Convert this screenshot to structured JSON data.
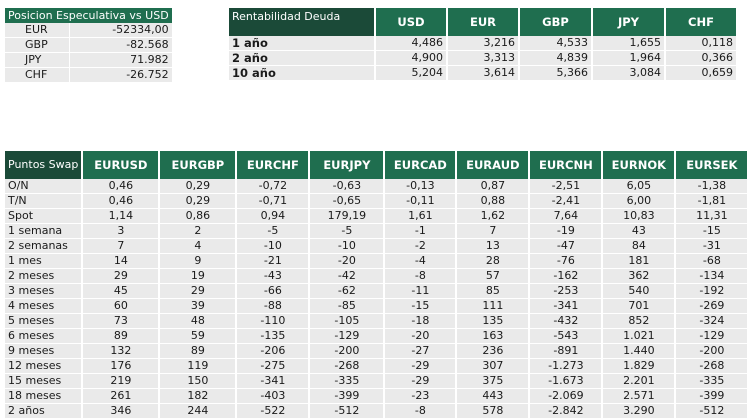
{
  "posicion": {
    "title": "Posicion Especulativa vs USD",
    "rows": [
      {
        "label": "EUR",
        "value": "-52334,00"
      },
      {
        "label": "GBP",
        "value": "-82.568"
      },
      {
        "label": "JPY",
        "value": "71.982"
      },
      {
        "label": "CHF",
        "value": "-26.752"
      }
    ]
  },
  "rentabilidad": {
    "title": "Rentabilidad Deuda",
    "columns": [
      "USD",
      "EUR",
      "GBP",
      "JPY",
      "CHF"
    ],
    "rows": [
      {
        "label": "1 año",
        "values": [
          "4,486",
          "3,216",
          "4,533",
          "1,655",
          "0,118"
        ]
      },
      {
        "label": "2 año",
        "values": [
          "4,900",
          "3,313",
          "4,839",
          "1,964",
          "0,366"
        ]
      },
      {
        "label": "10 año",
        "values": [
          "5,204",
          "3,614",
          "5,366",
          "3,084",
          "0,659"
        ]
      }
    ]
  },
  "swap": {
    "title": "Puntos Swap",
    "columns": [
      "EURUSD",
      "EURGBP",
      "EURCHF",
      "EURJPY",
      "EURCAD",
      "EURAUD",
      "EURCNH",
      "EURNOK",
      "EURSEK"
    ],
    "rows": [
      {
        "label": "O/N",
        "values": [
          "0,46",
          "0,29",
          "-0,72",
          "-0,63",
          "-0,13",
          "0,87",
          "-2,51",
          "6,05",
          "-1,38"
        ]
      },
      {
        "label": "T/N",
        "values": [
          "0,46",
          "0,29",
          "-0,71",
          "-0,65",
          "-0,11",
          "0,88",
          "-2,41",
          "6,00",
          "-1,81"
        ]
      },
      {
        "label": "Spot",
        "values": [
          "1,14",
          "0,86",
          "0,94",
          "179,19",
          "1,61",
          "1,62",
          "7,64",
          "10,83",
          "11,31"
        ]
      },
      {
        "label": "1 semana",
        "values": [
          "3",
          "2",
          "-5",
          "-5",
          "-1",
          "7",
          "-19",
          "43",
          "-15"
        ]
      },
      {
        "label": "2 semanas",
        "values": [
          "7",
          "4",
          "-10",
          "-10",
          "-2",
          "13",
          "-47",
          "84",
          "-31"
        ]
      },
      {
        "label": "1 mes",
        "values": [
          "14",
          "9",
          "-21",
          "-20",
          "-4",
          "28",
          "-76",
          "181",
          "-68"
        ]
      },
      {
        "label": "2 meses",
        "values": [
          "29",
          "19",
          "-43",
          "-42",
          "-8",
          "57",
          "-162",
          "362",
          "-134"
        ]
      },
      {
        "label": "3 meses",
        "values": [
          "45",
          "29",
          "-66",
          "-62",
          "-11",
          "85",
          "-253",
          "540",
          "-192"
        ]
      },
      {
        "label": "4 meses",
        "values": [
          "60",
          "39",
          "-88",
          "-85",
          "-15",
          "111",
          "-341",
          "701",
          "-269"
        ]
      },
      {
        "label": "5 meses",
        "values": [
          "73",
          "48",
          "-110",
          "-105",
          "-18",
          "135",
          "-432",
          "852",
          "-324"
        ]
      },
      {
        "label": "6 meses",
        "values": [
          "89",
          "59",
          "-135",
          "-129",
          "-20",
          "163",
          "-543",
          "1.021",
          "-129"
        ]
      },
      {
        "label": "9 meses",
        "values": [
          "132",
          "89",
          "-206",
          "-200",
          "-27",
          "236",
          "-891",
          "1.440",
          "-200"
        ]
      },
      {
        "label": "12 meses",
        "values": [
          "176",
          "119",
          "-275",
          "-268",
          "-29",
          "307",
          "-1.273",
          "1.829",
          "-268"
        ]
      },
      {
        "label": "15 meses",
        "values": [
          "219",
          "150",
          "-341",
          "-335",
          "-29",
          "375",
          "-1.673",
          "2.201",
          "-335"
        ]
      },
      {
        "label": "18 meses",
        "values": [
          "261",
          "182",
          "-403",
          "-399",
          "-23",
          "443",
          "-2.069",
          "2.571",
          "-399"
        ]
      },
      {
        "label": "2 años",
        "values": [
          "346",
          "244",
          "-522",
          "-512",
          "-8",
          "578",
          "-2.842",
          "3.290",
          "-512"
        ]
      }
    ]
  }
}
